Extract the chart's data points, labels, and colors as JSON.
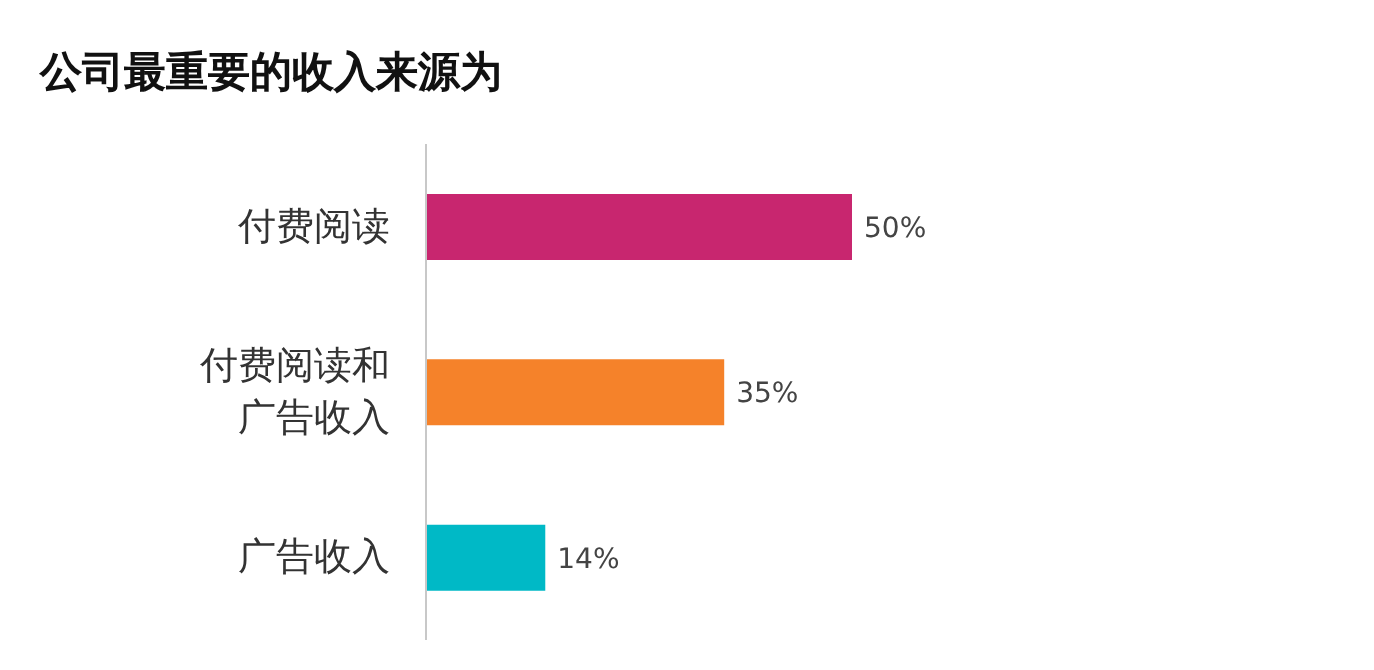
{
  "chart_data": {
    "type": "bar",
    "orientation": "horizontal",
    "title": "公司最重要的收入来源为",
    "categories": [
      "付费阅读",
      "付费阅读和广告收入",
      "广告收入"
    ],
    "values": [
      50,
      35,
      14
    ],
    "colors": [
      "#c8266f",
      "#f5822a",
      "#00b9c6"
    ],
    "value_labels": [
      "50%",
      "35%",
      "14%"
    ]
  }
}
